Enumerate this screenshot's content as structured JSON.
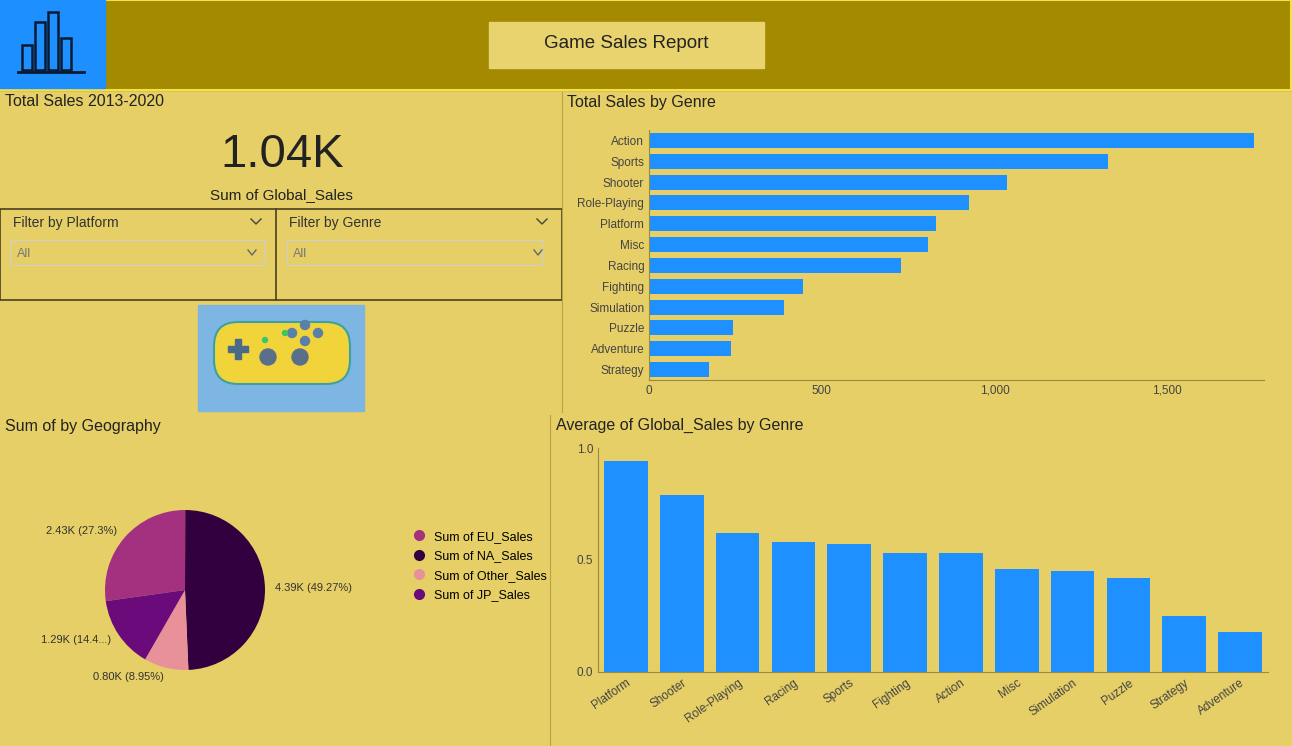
{
  "header": {
    "title": "Game Sales Report"
  },
  "kpi": {
    "title": "Total Sales 2013-2020",
    "value": "1.04K",
    "label": "Sum of Global_Sales"
  },
  "filters": [
    {
      "label": "Filter by Platform",
      "selection": "All"
    },
    {
      "label": "Filter by Genre",
      "selection": "All"
    }
  ],
  "chart_data": [
    {
      "type": "bar",
      "title": "Total Sales by Genre",
      "orientation": "horizontal",
      "categories": [
        "Action",
        "Sports",
        "Shooter",
        "Role-Playing",
        "Platform",
        "Misc",
        "Racing",
        "Fighting",
        "Simulation",
        "Puzzle",
        "Adventure",
        "Strategy"
      ],
      "values": [
        1752,
        1329,
        1037,
        927,
        831,
        808,
        730,
        446,
        391,
        243,
        237,
        174
      ],
      "color": "#1E90FF",
      "xlim": [
        0,
        1780
      ],
      "xticks": [
        0,
        500,
        {
          "value": 1000,
          "label": "1,000"
        },
        {
          "value": 1500,
          "label": "1,500"
        }
      ]
    },
    {
      "type": "pie",
      "title": "Sum of by Geography",
      "categories": [
        "Sum of EU_Sales",
        "Sum of NA_Sales",
        "Sum of Other_Sales",
        "Sum of JP_Sales"
      ],
      "values": [
        2430,
        4390,
        800,
        1290
      ],
      "value_labels": [
        "2.43K (27.3%)",
        "4.39K (49.27%)",
        "0.80K (8.95%)",
        "1.29K (14.4...)"
      ],
      "colors": [
        "#A4317F",
        "#33003F",
        "#E8919A",
        "#6B0A7A"
      ],
      "data_labels": true,
      "legend": "right"
    },
    {
      "type": "bar",
      "title": "Average of Global_Sales by Genre",
      "categories": [
        "Platform",
        "Shooter",
        "Role-Playing",
        "Racing",
        "Sports",
        "Fighting",
        "Action",
        "Misc",
        "Simulation",
        "Puzzle",
        "Strategy",
        "Adventure"
      ],
      "values": [
        0.94,
        0.79,
        0.62,
        0.58,
        0.57,
        0.53,
        0.53,
        0.46,
        0.45,
        0.42,
        0.25,
        0.18
      ],
      "color": "#1E90FF",
      "ylim": [
        0,
        1.0
      ],
      "yticks": [
        {
          "value": 0,
          "label": "0.0"
        },
        0.5,
        {
          "value": 1,
          "label": "1.0"
        }
      ]
    }
  ]
}
